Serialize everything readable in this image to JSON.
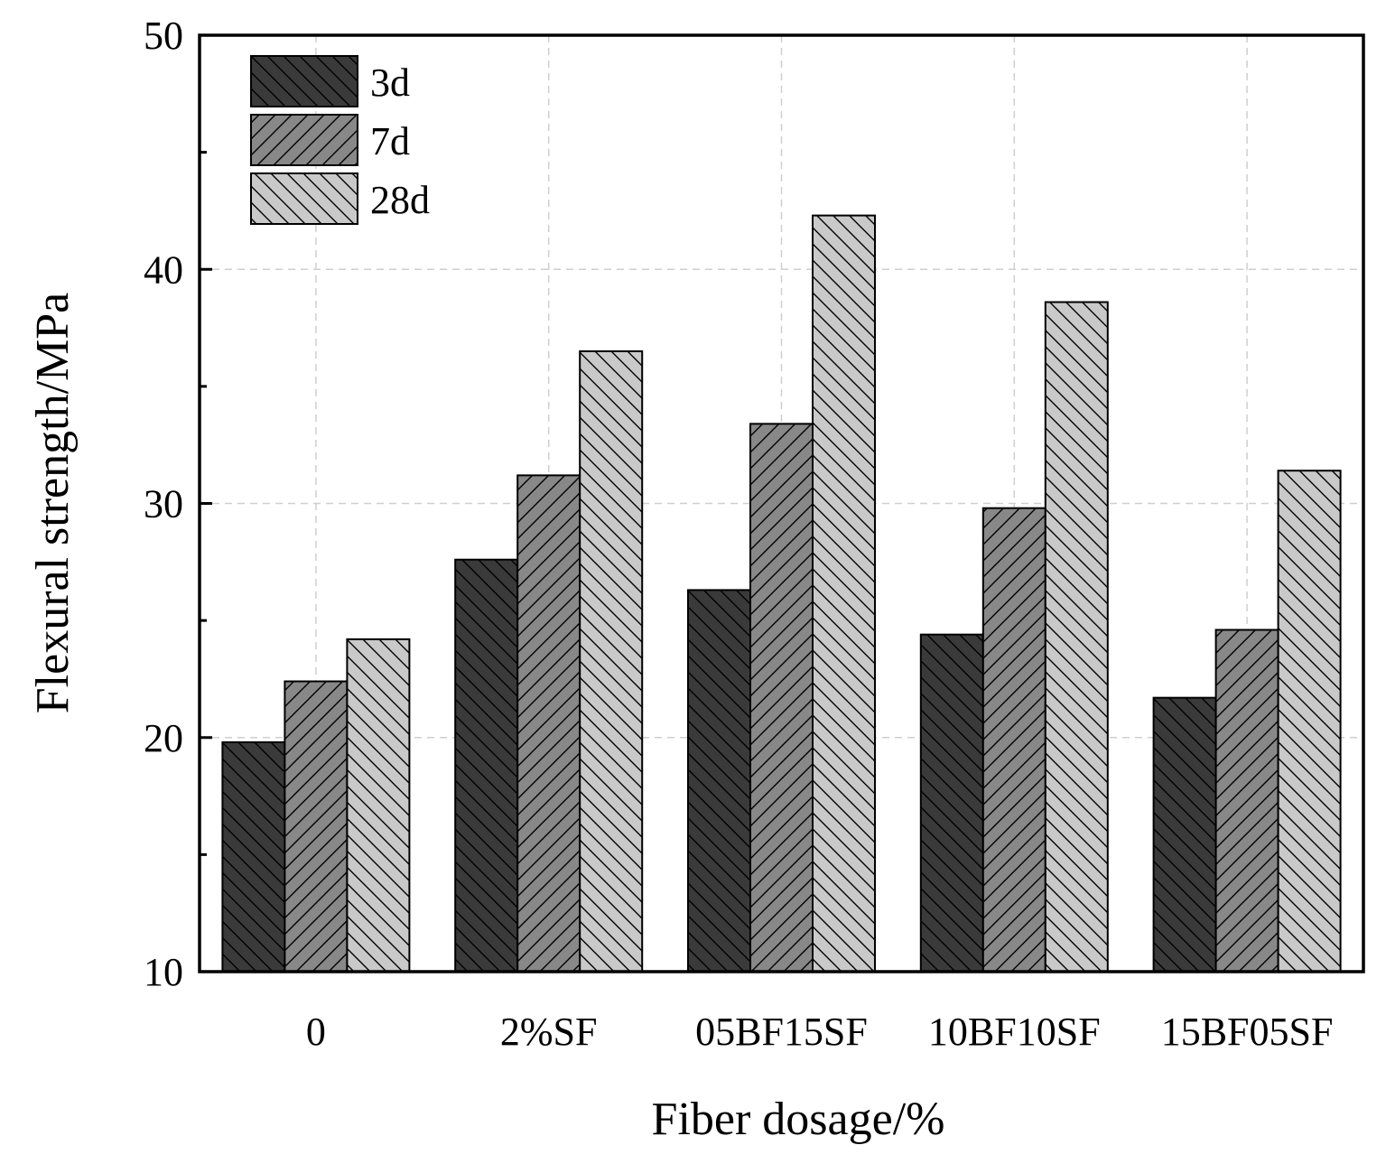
{
  "chart_data": {
    "type": "bar",
    "title": "",
    "xlabel": "Fiber dosage/%",
    "ylabel": "Flexural strength/MPa",
    "ylim": [
      10,
      50
    ],
    "yticks": [
      10,
      20,
      30,
      40,
      50
    ],
    "grid": true,
    "legend_position": "top-left",
    "categories": [
      "0",
      "2%SF",
      "05BF15SF",
      "10BF10SF",
      "15BF05SF"
    ],
    "series": [
      {
        "name": "3d",
        "values": [
          19.8,
          27.6,
          26.3,
          24.4,
          21.7
        ],
        "color": "#3a3a3a",
        "hatch": "backslash"
      },
      {
        "name": "7d",
        "values": [
          22.4,
          31.2,
          33.4,
          29.8,
          24.6
        ],
        "color": "#888888",
        "hatch": "slash"
      },
      {
        "name": "28d",
        "values": [
          24.2,
          36.5,
          42.3,
          38.6,
          31.4
        ],
        "color": "#c9c9c9",
        "hatch": "backslash"
      }
    ]
  }
}
